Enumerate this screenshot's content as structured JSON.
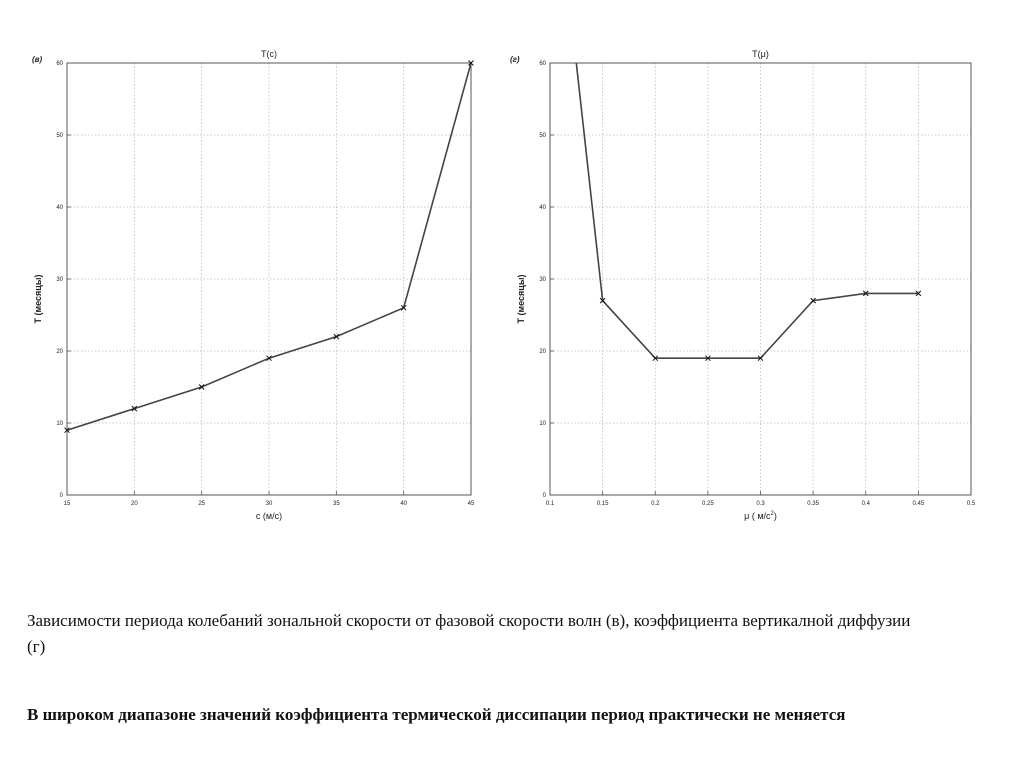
{
  "chart_data": [
    {
      "type": "line",
      "panel_label": "(в)",
      "title": "T(c)",
      "xlabel": "c  (м/с)",
      "ylabel": "T  (месяцы)",
      "xlim": [
        15,
        45
      ],
      "ylim": [
        0,
        60
      ],
      "x_ticks": [
        15,
        20,
        25,
        30,
        35,
        40,
        45
      ],
      "x_tick_labels": [
        "15",
        "20",
        "25",
        "30",
        "35",
        "40",
        "45"
      ],
      "y_ticks": [
        0,
        10,
        20,
        30,
        40,
        50,
        60
      ],
      "y_tick_labels": [
        "0",
        "10",
        "20",
        "30",
        "40",
        "50",
        "60"
      ],
      "grid": true,
      "series": [
        {
          "x": [
            15,
            20,
            25,
            30,
            35,
            40,
            45
          ],
          "values": [
            9,
            12,
            15,
            19,
            22,
            26,
            60
          ]
        }
      ]
    },
    {
      "type": "line",
      "panel_label": "(г)",
      "title": "T(μ)",
      "xlabel": "μ ( м/с",
      "xlabel_sup": "2",
      "xlabel_end": ")",
      "ylabel": "T  (месяцы)",
      "xlim": [
        0.1,
        0.5
      ],
      "ylim": [
        0,
        60
      ],
      "x_ticks": [
        0.1,
        0.15,
        0.2,
        0.25,
        0.3,
        0.35,
        0.4,
        0.45,
        0.5
      ],
      "x_tick_labels": [
        "0.1",
        "0.15",
        "0.2",
        "0.25",
        "0.3",
        "0.35",
        "0.4",
        "0.45",
        "0.5"
      ],
      "y_ticks": [
        0,
        10,
        20,
        30,
        40,
        50,
        60
      ],
      "y_tick_labels": [
        "0",
        "10",
        "20",
        "30",
        "40",
        "50",
        "60"
      ],
      "grid": true,
      "series": [
        {
          "x": [
            0.125,
            0.15,
            0.2,
            0.25,
            0.3,
            0.35,
            0.4,
            0.45
          ],
          "values": [
            60,
            27,
            19,
            19,
            19,
            27,
            28,
            28
          ]
        }
      ]
    }
  ],
  "caption": "Зависимости периода колебаний зональной скорости от фазовой скорости волн (в), коэффициента вертикалной диффузии (г)",
  "conclusion": "В широком диапазоне значений коэффициента термической диссипации период практически не меняется"
}
